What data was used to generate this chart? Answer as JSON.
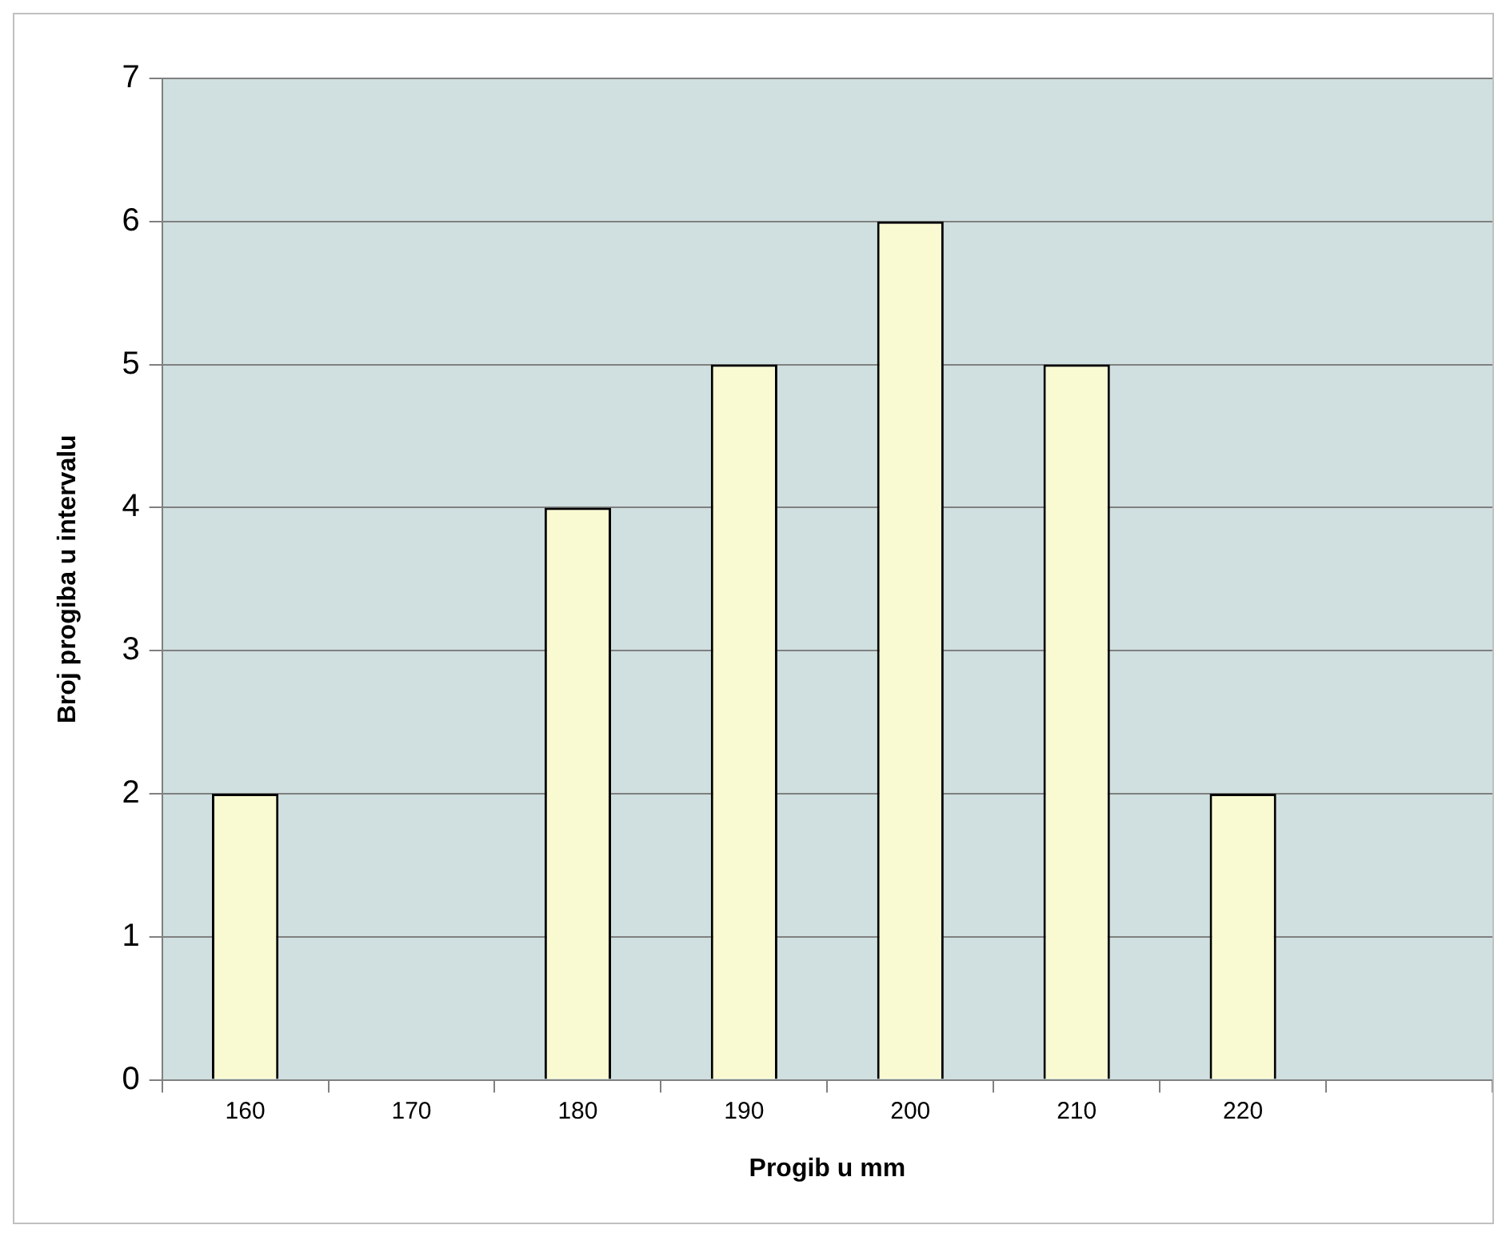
{
  "chart_data": {
    "type": "bar",
    "xlabel": "Progib u mm",
    "ylabel": "Broj progiba u intervalu",
    "categories": [
      "160",
      "170",
      "180",
      "190",
      "200",
      "210",
      "220",
      null
    ],
    "values": [
      2,
      0,
      4,
      5,
      6,
      5,
      2,
      null
    ],
    "color": "#fafad2",
    "ylim": [
      0,
      7
    ],
    "yticks": [
      0,
      1,
      2,
      3,
      4,
      5,
      6,
      7
    ],
    "grid": "y",
    "legend": false
  }
}
